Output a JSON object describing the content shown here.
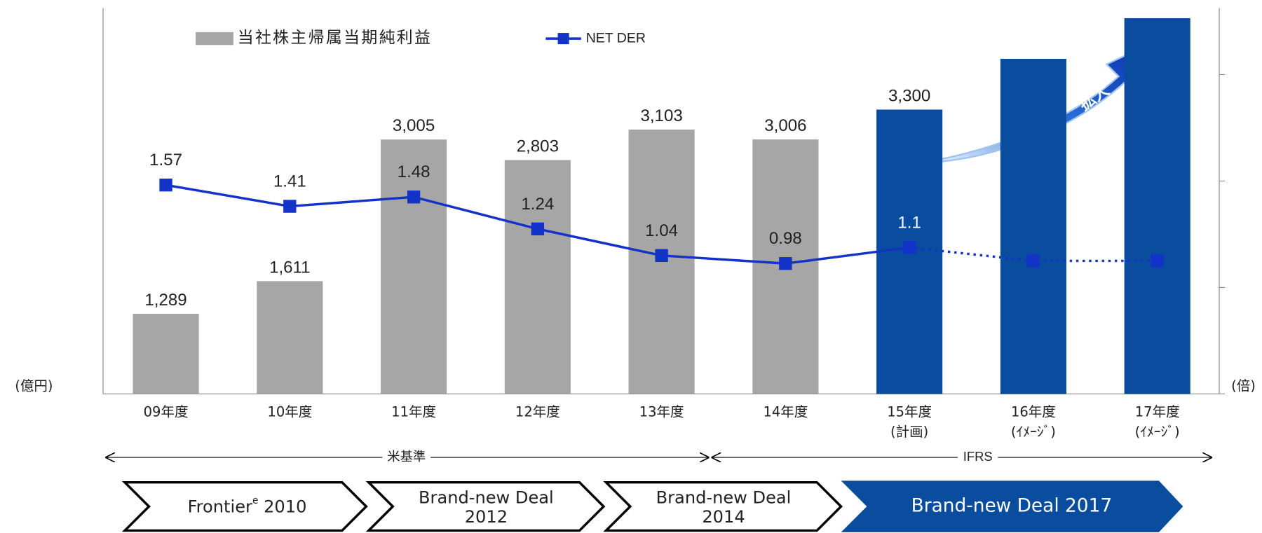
{
  "chart_data": {
    "type": "bar",
    "categories": [
      "09年度",
      "10年度",
      "11年度",
      "12年度",
      "13年度",
      "14年度",
      "15年度",
      "16年度",
      "17年度"
    ],
    "category_notes": [
      null,
      null,
      null,
      null,
      null,
      null,
      "(計画)",
      "(ｲﾒｰｼﾞ)",
      "(ｲﾒｰｼﾞ)"
    ],
    "ylim": [
      500,
      4300
    ],
    "y_axis_label": "(億円)",
    "y2lim": [
      0,
      2.9
    ],
    "y2ticks": [
      0,
      0.8,
      1.6,
      2.4
    ],
    "y2_axis_label": "(倍)",
    "series": [
      {
        "name": "当社株主帰属当期純利益",
        "type": "bar",
        "colors": [
          "#a6a6a6",
          "#a6a6a6",
          "#a6a6a6",
          "#a6a6a6",
          "#a6a6a6",
          "#a6a6a6",
          "#0a4d9e",
          "#0a4d9e",
          "#0a4d9e"
        ],
        "color": "#a6a6a6",
        "values": [
          1289,
          1611,
          3005,
          2803,
          3103,
          3006,
          3300,
          3800,
          4200
        ],
        "value_labels": [
          "1,289",
          "1,611",
          "3,005",
          "2,803",
          "3,103",
          "3,006",
          "3,300",
          null,
          null
        ]
      },
      {
        "name": "NET DER",
        "type": "line",
        "axis": "y2",
        "color": "#1232c8",
        "values": [
          1.57,
          1.41,
          1.48,
          1.24,
          1.04,
          0.98,
          1.1,
          1.0,
          1.0
        ],
        "value_labels": [
          "1.57",
          "1.41",
          "1.48",
          "1.24",
          "1.04",
          "0.98",
          "1.1",
          null,
          null
        ]
      }
    ],
    "annotation": "拡大",
    "standards": [
      {
        "label": "米基準"
      },
      {
        "label": "IFRS"
      }
    ],
    "phases": [
      {
        "lines": [
          "Frontier"
        ],
        "sup": "e",
        "suffix": " 2010"
      },
      {
        "lines": [
          "Brand-new Deal",
          "2012"
        ]
      },
      {
        "lines": [
          "Brand-new Deal",
          "2014"
        ]
      },
      {
        "lines": [
          "Brand-new Deal 2017"
        ]
      }
    ]
  }
}
